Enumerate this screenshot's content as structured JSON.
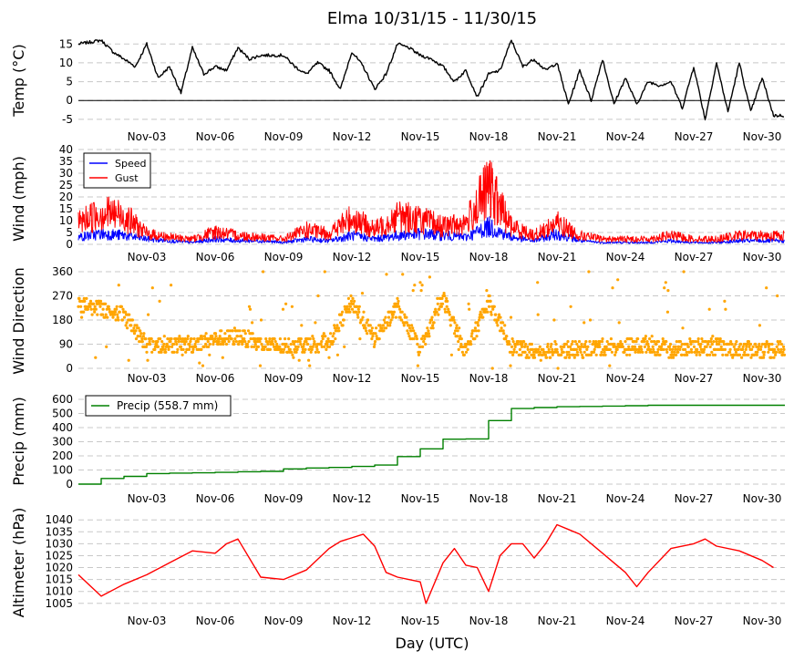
{
  "chart_data": {
    "type": "line",
    "title": "Elma 10/31/15 - 11/30/15",
    "xlabel": "Day (UTC)",
    "x_ticks": [
      "Nov-03",
      "Nov-06",
      "Nov-09",
      "Nov-12",
      "Nov-15",
      "Nov-18",
      "Nov-21",
      "Nov-24",
      "Nov-27",
      "Nov-30"
    ],
    "x_range": [
      "2015-10-31",
      "2015-11-30"
    ],
    "panels": [
      {
        "id": "temp",
        "type": "line",
        "ylabel": "Temp ($^\\circ$C)",
        "ylabel_text": "Temp (°C)",
        "ylim": [
          -6,
          17
        ],
        "yticks": [
          -5,
          0,
          5,
          10,
          15
        ],
        "grid": "dashed-horizontal",
        "zero_line": true,
        "series": [
          {
            "color": "#000000",
            "x": [
              "10/31 00:00",
              "11/01 00:00",
              "11/01 12:00",
              "11/02 00:00",
              "11/02 12:00",
              "11/03 00:00",
              "11/03 12:00",
              "11/04 00:00",
              "11/04 12:00",
              "11/05 00:00",
              "11/05 12:00",
              "11/06 00:00",
              "11/06 12:00",
              "11/07 00:00",
              "11/07 12:00",
              "11/08 00:00",
              "11/08 12:00",
              "11/09 00:00",
              "11/09 12:00",
              "11/10 00:00",
              "11/10 12:00",
              "11/11 00:00",
              "11/11 12:00",
              "11/12 00:00",
              "11/12 12:00",
              "11/13 00:00",
              "11/13 12:00",
              "11/14 00:00",
              "11/14 12:00",
              "11/15 00:00",
              "11/15 12:00",
              "11/16 00:00",
              "11/16 12:00",
              "11/17 00:00",
              "11/17 12:00",
              "11/18 00:00",
              "11/18 12:00",
              "11/19 00:00",
              "11/19 12:00",
              "11/20 00:00",
              "11/20 12:00",
              "11/21 00:00",
              "11/21 12:00",
              "11/22 00:00",
              "11/22 12:00",
              "11/23 00:00",
              "11/23 12:00",
              "11/24 00:00",
              "11/24 12:00",
              "11/25 00:00",
              "11/25 12:00",
              "11/26 00:00",
              "11/26 12:00",
              "11/27 00:00",
              "11/27 12:00",
              "11/28 00:00",
              "11/28 12:00",
              "11/29 00:00",
              "11/29 12:00",
              "11/30 00:00",
              "11/30 12:00"
            ],
            "values": [
              15,
              16,
              13,
              11,
              9,
              15,
              6,
              9,
              2,
              14,
              7,
              9,
              8,
              14,
              11,
              12,
              12,
              12,
              9,
              7,
              10,
              8,
              3,
              13,
              9,
              3,
              7,
              15,
              14,
              12,
              11,
              9,
              5,
              8,
              1,
              7,
              8,
              16,
              9,
              11,
              8,
              10,
              -1,
              8,
              0,
              11,
              -1,
              6,
              -1,
              5,
              4,
              5,
              -2,
              9,
              -5,
              10,
              -3,
              10,
              -3,
              6,
              -4
            ]
          }
        ]
      },
      {
        "id": "wind",
        "type": "line",
        "ylabel": "Wind (mph)",
        "ylim": [
          0,
          40
        ],
        "yticks": [
          0,
          5,
          10,
          15,
          20,
          25,
          30,
          35,
          40
        ],
        "grid": "dashed-horizontal",
        "legend": {
          "placement": "top-left",
          "entries": [
            {
              "name": "Speed",
              "color": "#0000ff"
            },
            {
              "name": "Gust",
              "color": "#ff0000"
            }
          ]
        },
        "series": [
          {
            "name": "Speed",
            "color": "#0000ff",
            "x": [
              "10/31",
              "11/01",
              "11/02",
              "11/03",
              "11/04",
              "11/05",
              "11/06",
              "11/07",
              "11/08",
              "11/09",
              "11/10",
              "11/11",
              "11/12",
              "11/13",
              "11/14",
              "11/15",
              "11/16",
              "11/17",
              "11/18",
              "11/19",
              "11/20",
              "11/21",
              "11/22",
              "11/23",
              "11/24",
              "11/25",
              "11/26",
              "11/27",
              "11/28",
              "11/29",
              "11/30"
            ],
            "values": [
              4,
              6,
              5,
              3,
              2,
              1,
              3,
              2,
              2,
              1,
              3,
              2,
              5,
              3,
              5,
              6,
              5,
              4,
              10,
              4,
              2,
              6,
              2,
              1,
              1,
              1,
              2,
              1,
              1,
              2,
              2
            ]
          },
          {
            "name": "Gust",
            "color": "#ff0000",
            "x": [
              "10/31",
              "11/01",
              "11/02",
              "11/03",
              "11/04",
              "11/05",
              "11/06",
              "11/07",
              "11/08",
              "11/09",
              "11/10",
              "11/11",
              "11/12",
              "11/13",
              "11/14",
              "11/15",
              "11/16",
              "11/17",
              "11/18",
              "11/19",
              "11/20",
              "11/21",
              "11/22",
              "11/23",
              "11/24",
              "11/25",
              "11/26",
              "11/27",
              "11/28",
              "11/29",
              "11/30"
            ],
            "values": [
              12,
              18,
              16,
              6,
              4,
              3,
              7,
              5,
              4,
              3,
              8,
              6,
              15,
              8,
              16,
              14,
              10,
              12,
              32,
              10,
              5,
              12,
              5,
              3,
              3,
              3,
              5,
              3,
              3,
              5,
              5
            ]
          }
        ]
      },
      {
        "id": "direction",
        "type": "scatter",
        "ylabel": "Wind Direction",
        "ylim": [
          0,
          360
        ],
        "yticks": [
          0,
          90,
          180,
          270,
          360
        ],
        "grid": "dashed-horizontal",
        "series": [
          {
            "color": "#ffa500",
            "x": [
              "10/31",
              "11/01",
              "11/02",
              "11/03",
              "11/04",
              "11/05",
              "11/06",
              "11/07",
              "11/08",
              "11/09",
              "11/10",
              "11/11",
              "11/12",
              "11/13",
              "11/14",
              "11/15",
              "11/16",
              "11/17",
              "11/18",
              "11/19",
              "11/20",
              "11/21",
              "11/22",
              "11/23",
              "11/24",
              "11/25",
              "11/26",
              "11/27",
              "11/28",
              "11/29",
              "11/30"
            ],
            "values": [
              240,
              220,
              200,
              90,
              90,
              90,
              110,
              120,
              90,
              80,
              90,
              100,
              250,
              110,
              230,
              70,
              260,
              60,
              250,
              80,
              60,
              70,
              70,
              80,
              80,
              90,
              70,
              80,
              80,
              70,
              70
            ]
          }
        ]
      },
      {
        "id": "precip",
        "type": "line",
        "ylabel": "Precip (mm)",
        "ylim": [
          0,
          600
        ],
        "yticks": [
          0,
          100,
          200,
          300,
          400,
          500,
          600
        ],
        "grid": "dashed-horizontal",
        "legend": {
          "placement": "top-left",
          "entries": [
            {
              "name": "Precip (558.7 mm)",
              "color": "#008000"
            }
          ]
        },
        "series": [
          {
            "name": "Precip (558.7 mm)",
            "color": "#008000",
            "x": [
              "10/31",
              "11/01",
              "11/02",
              "11/03",
              "11/04",
              "11/05",
              "11/06",
              "11/07",
              "11/08",
              "11/09",
              "11/10",
              "11/11",
              "11/12",
              "11/13",
              "11/14",
              "11/15",
              "11/16",
              "11/17",
              "11/18",
              "11/19",
              "11/20",
              "11/21",
              "11/22",
              "11/23",
              "11/24",
              "11/25",
              "11/26",
              "11/27",
              "11/28",
              "11/29",
              "11/30"
            ],
            "values": [
              0,
              40,
              55,
              75,
              78,
              80,
              83,
              88,
              90,
              108,
              114,
              118,
              125,
              135,
              195,
              250,
              318,
              320,
              450,
              535,
              542,
              548,
              550,
              552,
              555,
              558,
              558,
              558,
              558,
              558,
              558
            ]
          }
        ]
      },
      {
        "id": "altimeter",
        "type": "line",
        "ylabel": "Altimeter (hPa)",
        "ylim": [
          1003,
          1042
        ],
        "yticks": [
          1005,
          1010,
          1015,
          1020,
          1025,
          1030,
          1035,
          1040
        ],
        "grid": "dashed-horizontal",
        "series": [
          {
            "color": "#ff0000",
            "x": [
              "10/31 00:00",
              "11/01 00:00",
              "11/02 00:00",
              "11/03 00:00",
              "11/04 00:00",
              "11/05 00:00",
              "11/06 00:00",
              "11/06 12:00",
              "11/07 00:00",
              "11/08 00:00",
              "11/09 00:00",
              "11/10 00:00",
              "11/11 00:00",
              "11/11 12:00",
              "11/12 12:00",
              "11/13 00:00",
              "11/13 12:00",
              "11/14 00:00",
              "11/15 00:00",
              "11/15 06:00",
              "11/16 00:00",
              "11/16 12:00",
              "11/17 00:00",
              "11/17 12:00",
              "11/18 00:00",
              "11/18 12:00",
              "11/19 00:00",
              "11/19 12:00",
              "11/20 00:00",
              "11/20 12:00",
              "11/21 00:00",
              "11/21 12:00",
              "11/22 00:00",
              "11/23 00:00",
              "11/24 00:00",
              "11/24 12:00",
              "11/25 00:00",
              "11/26 00:00",
              "11/27 00:00",
              "11/27 12:00",
              "11/28 00:00",
              "11/29 00:00",
              "11/30 00:00",
              "11/30 12:00"
            ],
            "values": [
              1017,
              1008,
              1013,
              1017,
              1022,
              1027,
              1026,
              1030,
              1032,
              1016,
              1015,
              1019,
              1028,
              1031,
              1034,
              1029,
              1018,
              1016,
              1014,
              1005,
              1022,
              1028,
              1021,
              1020,
              1010,
              1025,
              1030,
              1030,
              1024,
              1030,
              1038,
              1036,
              1034,
              1026,
              1018,
              1012,
              1018,
              1028,
              1030,
              1032,
              1029,
              1027,
              1023,
              1020
            ]
          }
        ]
      }
    ]
  }
}
